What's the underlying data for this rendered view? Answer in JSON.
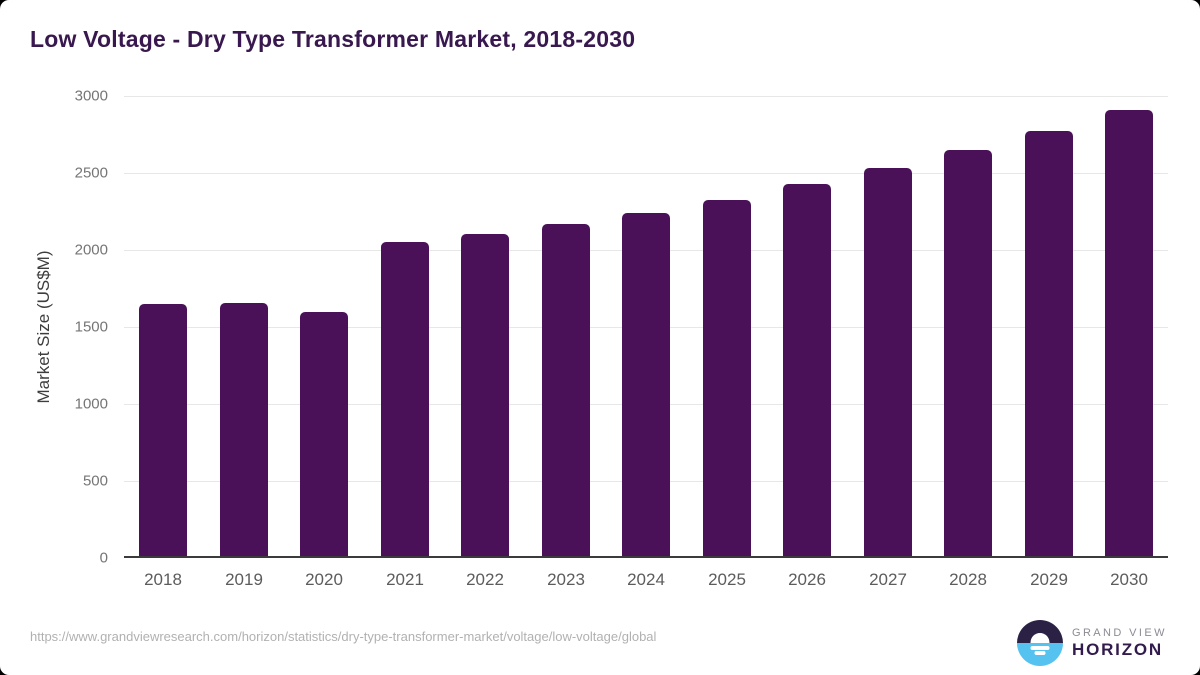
{
  "page": {
    "title": "Low Voltage - Dry Type Transformer Market, 2018-2030",
    "source_url": "https://www.grandviewresearch.com/horizon/statistics/dry-type-transformer-market/voltage/low-voltage/global"
  },
  "brand": {
    "name_top": "GRAND VIEW",
    "name_bottom": "HORIZON",
    "icon": "horizon-sun-icon"
  },
  "colors": {
    "bar": "#4a1158",
    "title": "#38184e",
    "tick_y": "#757575",
    "tick_x": "#5c5c5c",
    "ylabel": "#3d3d3d",
    "gridline": "#e7e7e7",
    "axis_line": "#3b3b3b",
    "url": "#b1b1b1",
    "logo_dark": "#2b2145",
    "logo_blue": "#56c2f0",
    "brand_top": "#8b8b94",
    "brand_bottom": "#321b4d"
  },
  "chart_data": {
    "type": "bar",
    "title": "Low Voltage - Dry Type Transformer Market, 2018-2030",
    "categories": [
      "2018",
      "2019",
      "2020",
      "2021",
      "2022",
      "2023",
      "2024",
      "2025",
      "2026",
      "2027",
      "2028",
      "2029",
      "2030"
    ],
    "values": [
      1640,
      1650,
      1590,
      2045,
      2095,
      2165,
      2235,
      2320,
      2420,
      2525,
      2640,
      2765,
      2900
    ],
    "xlabel": "",
    "ylabel": "Market Size (US$M)",
    "ylim": [
      0,
      3000
    ],
    "yticks": [
      0,
      500,
      1000,
      1500,
      2000,
      2500,
      3000
    ],
    "grid": true,
    "legend": false,
    "bar_color": "#4a1158"
  }
}
